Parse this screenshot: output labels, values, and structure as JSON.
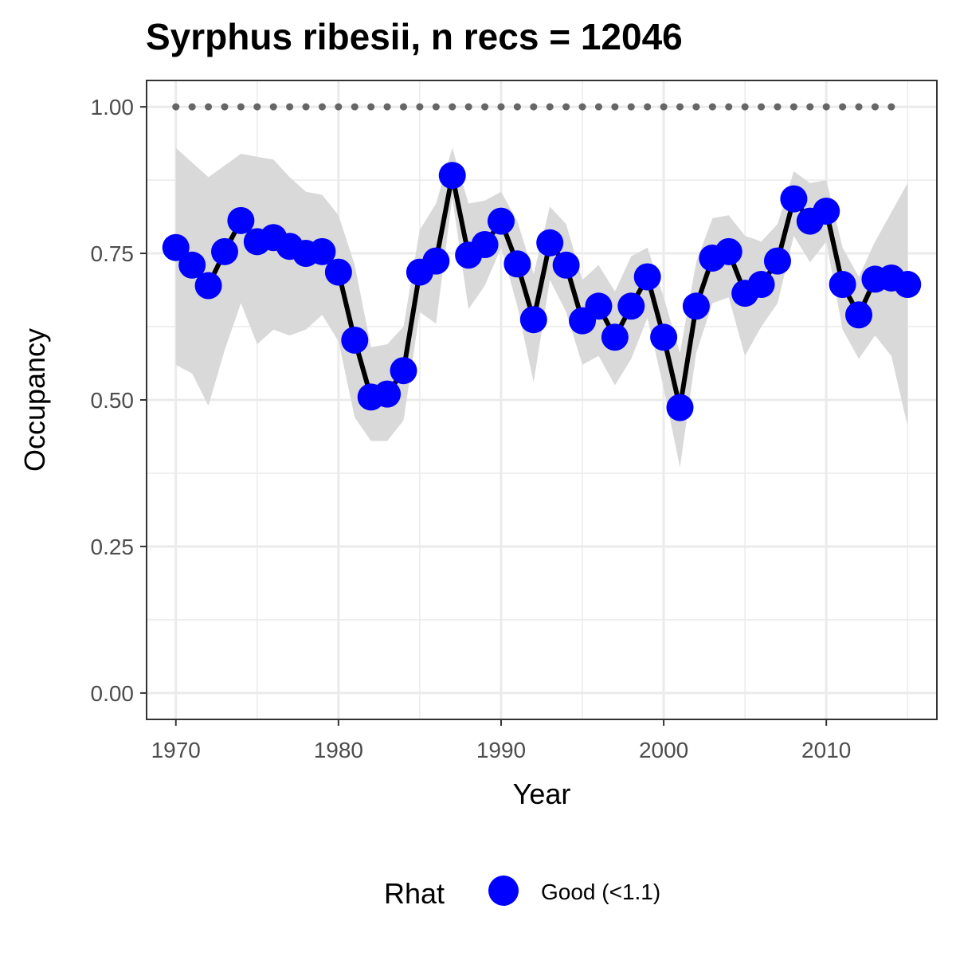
{
  "chart_data": {
    "type": "line",
    "title": "Syrphus ribesii, n recs = 12046",
    "xlabel": "Year",
    "ylabel": "Occupancy",
    "xlim": [
      1968.2,
      2016.8
    ],
    "ylim": [
      -0.045,
      1.045
    ],
    "x_ticks": [
      1970,
      1980,
      1990,
      2000,
      2010
    ],
    "x_tick_labels": [
      "1970",
      "1980",
      "1990",
      "2000",
      "2010"
    ],
    "y_ticks": [
      0,
      0.25,
      0.5,
      0.75,
      1.0
    ],
    "y_tick_labels": [
      "0.00",
      "0.25",
      "0.50",
      "0.75",
      "1.00"
    ],
    "grid": true,
    "legend_position": "bottom",
    "legend": {
      "title": "Rhat",
      "entries": [
        {
          "label": "Good (<1.1)",
          "color": "#0000ff"
        }
      ]
    },
    "colors": {
      "points": "#0000ff",
      "line": "#000000",
      "ribbon": "#d9d9d9",
      "reference": "#666666",
      "grid": "#ebebeb",
      "panel_border": "#333333"
    },
    "reference_line": {
      "y": 1.0,
      "x_start": 1970,
      "x_end": 2014,
      "style": "dotted"
    },
    "series": [
      {
        "name": "Occupancy",
        "x": [
          1970,
          1971,
          1972,
          1973,
          1974,
          1975,
          1976,
          1977,
          1978,
          1979,
          1980,
          1981,
          1982,
          1983,
          1984,
          1985,
          1986,
          1987,
          1988,
          1989,
          1990,
          1991,
          1992,
          1993,
          1994,
          1995,
          1996,
          1997,
          1998,
          1999,
          2000,
          2001,
          2002,
          2003,
          2004,
          2005,
          2006,
          2007,
          2008,
          2009,
          2010,
          2011,
          2012,
          2013,
          2014,
          2015
        ],
        "y": [
          0.76,
          0.73,
          0.695,
          0.753,
          0.806,
          0.77,
          0.777,
          0.762,
          0.75,
          0.753,
          0.718,
          0.602,
          0.505,
          0.51,
          0.55,
          0.718,
          0.737,
          0.883,
          0.747,
          0.765,
          0.805,
          0.732,
          0.637,
          0.768,
          0.73,
          0.635,
          0.66,
          0.607,
          0.66,
          0.71,
          0.607,
          0.487,
          0.66,
          0.742,
          0.753,
          0.682,
          0.697,
          0.737,
          0.843,
          0.805,
          0.822,
          0.697,
          0.645,
          0.706,
          0.708,
          0.697
        ],
        "lower": [
          0.56,
          0.545,
          0.49,
          0.585,
          0.665,
          0.595,
          0.62,
          0.61,
          0.62,
          0.645,
          0.6,
          0.47,
          0.43,
          0.43,
          0.465,
          0.65,
          0.63,
          0.845,
          0.655,
          0.695,
          0.76,
          0.66,
          0.53,
          0.705,
          0.65,
          0.56,
          0.575,
          0.525,
          0.57,
          0.64,
          0.52,
          0.385,
          0.58,
          0.665,
          0.675,
          0.575,
          0.625,
          0.665,
          0.78,
          0.735,
          0.77,
          0.62,
          0.57,
          0.61,
          0.575,
          0.455
        ],
        "upper": [
          0.93,
          0.905,
          0.88,
          0.9,
          0.92,
          0.915,
          0.91,
          0.88,
          0.855,
          0.85,
          0.815,
          0.73,
          0.59,
          0.595,
          0.625,
          0.79,
          0.835,
          0.93,
          0.835,
          0.84,
          0.855,
          0.805,
          0.715,
          0.83,
          0.8,
          0.705,
          0.73,
          0.685,
          0.745,
          0.76,
          0.675,
          0.58,
          0.735,
          0.81,
          0.815,
          0.78,
          0.77,
          0.8,
          0.89,
          0.87,
          0.875,
          0.76,
          0.71,
          0.77,
          0.82,
          0.87
        ]
      }
    ]
  }
}
